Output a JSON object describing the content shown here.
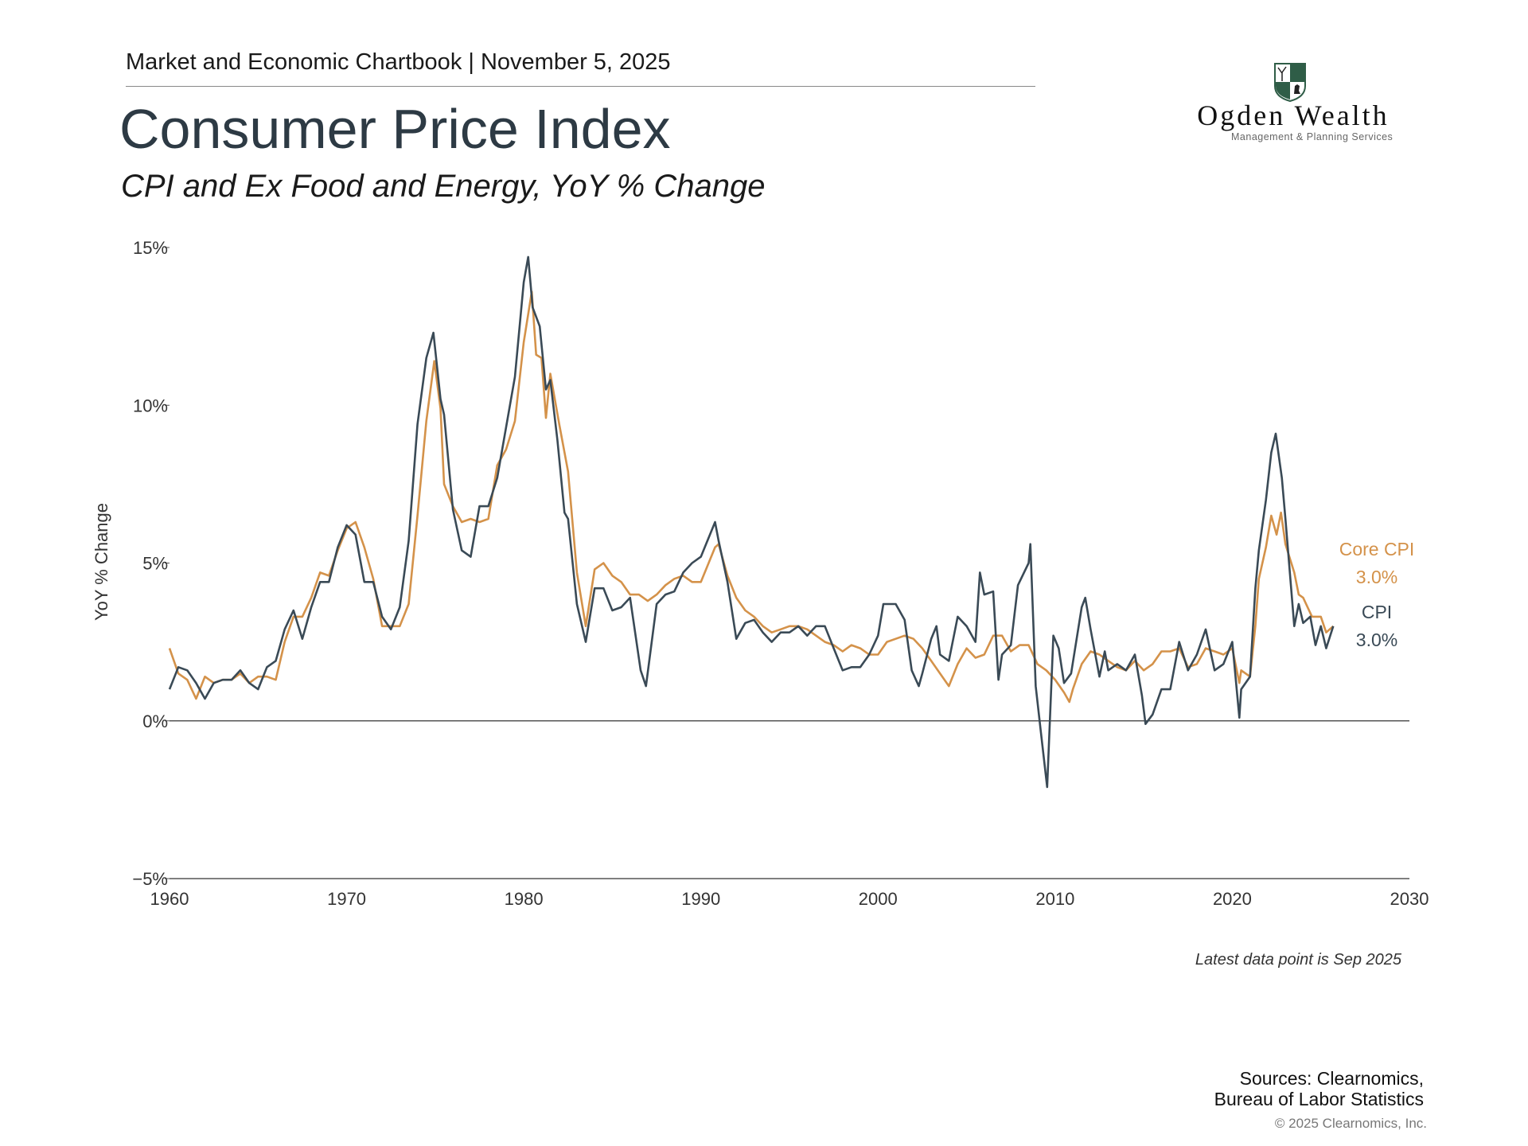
{
  "header": {
    "kicker": "Market and Economic Chartbook | November 5, 2025",
    "title": "Consumer Price Index",
    "subtitle": "CPI and Ex Food and Energy, YoY % Change"
  },
  "logo": {
    "name": "Ogden Wealth",
    "tagline": "Management & Planning Services",
    "colors": {
      "shield_green": "#2f5d47"
    }
  },
  "footer": {
    "note": "Latest data point is Sep 2025",
    "sources_line1": "Sources: Clearnomics,",
    "sources_line2": "Bureau of Labor Statistics",
    "copyright": "© 2025 Clearnomics, Inc."
  },
  "chart_data": {
    "type": "line",
    "title": "Consumer Price Index",
    "subtitle": "CPI and Ex Food and Energy, YoY % Change",
    "xlabel": "",
    "ylabel": "YoY % Change",
    "xlim": [
      1960,
      2030
    ],
    "ylim": [
      -5,
      15
    ],
    "x_ticks": [
      1960,
      1970,
      1980,
      1990,
      2000,
      2010,
      2020,
      2030
    ],
    "x_tick_labels": [
      "1960",
      "1970",
      "1980",
      "1990",
      "2000",
      "2010",
      "2020",
      "2030"
    ],
    "y_ticks": [
      -5,
      0,
      5,
      10,
      15
    ],
    "y_tick_labels": [
      "−5%",
      "0%",
      "5%",
      "10%",
      "15%"
    ],
    "grid": false,
    "legend": "direct labels at right end of lines",
    "series": [
      {
        "name": "CPI",
        "end_label": "3.0%",
        "color": "#3a4a56",
        "points": [
          [
            1960,
            1.0
          ],
          [
            1960.5,
            1.7
          ],
          [
            1961,
            1.6
          ],
          [
            1961.5,
            1.2
          ],
          [
            1962,
            0.7
          ],
          [
            1962.5,
            1.2
          ],
          [
            1963,
            1.3
          ],
          [
            1963.5,
            1.3
          ],
          [
            1964,
            1.6
          ],
          [
            1964.5,
            1.2
          ],
          [
            1965,
            1.0
          ],
          [
            1965.5,
            1.7
          ],
          [
            1966,
            1.9
          ],
          [
            1966.5,
            2.9
          ],
          [
            1967,
            3.5
          ],
          [
            1967.5,
            2.6
          ],
          [
            1968,
            3.6
          ],
          [
            1968.5,
            4.4
          ],
          [
            1969,
            4.4
          ],
          [
            1969.5,
            5.5
          ],
          [
            1970,
            6.2
          ],
          [
            1970.5,
            5.9
          ],
          [
            1971,
            4.4
          ],
          [
            1971.5,
            4.4
          ],
          [
            1972,
            3.3
          ],
          [
            1972.5,
            2.9
          ],
          [
            1973,
            3.6
          ],
          [
            1973.5,
            5.7
          ],
          [
            1974,
            9.4
          ],
          [
            1974.5,
            11.5
          ],
          [
            1974.9,
            12.3
          ],
          [
            1975.3,
            10.2
          ],
          [
            1975.5,
            9.7
          ],
          [
            1976,
            6.7
          ],
          [
            1976.5,
            5.4
          ],
          [
            1977,
            5.2
          ],
          [
            1977.5,
            6.8
          ],
          [
            1978,
            6.8
          ],
          [
            1978.5,
            7.7
          ],
          [
            1979,
            9.3
          ],
          [
            1979.5,
            10.9
          ],
          [
            1980,
            13.9
          ],
          [
            1980.25,
            14.7
          ],
          [
            1980.5,
            13.1
          ],
          [
            1980.9,
            12.5
          ],
          [
            1981.25,
            10.5
          ],
          [
            1981.5,
            10.8
          ],
          [
            1981.9,
            8.9
          ],
          [
            1982.3,
            6.6
          ],
          [
            1982.5,
            6.4
          ],
          [
            1983,
            3.7
          ],
          [
            1983.5,
            2.5
          ],
          [
            1984,
            4.2
          ],
          [
            1984.5,
            4.2
          ],
          [
            1985,
            3.5
          ],
          [
            1985.5,
            3.6
          ],
          [
            1986,
            3.9
          ],
          [
            1986.6,
            1.6
          ],
          [
            1986.9,
            1.1
          ],
          [
            1987.5,
            3.7
          ],
          [
            1988,
            4.0
          ],
          [
            1988.5,
            4.1
          ],
          [
            1989,
            4.7
          ],
          [
            1989.5,
            5.0
          ],
          [
            1990,
            5.2
          ],
          [
            1990.8,
            6.3
          ],
          [
            1991,
            5.7
          ],
          [
            1991.5,
            4.4
          ],
          [
            1992,
            2.6
          ],
          [
            1992.5,
            3.1
          ],
          [
            1993,
            3.2
          ],
          [
            1993.5,
            2.8
          ],
          [
            1994,
            2.5
          ],
          [
            1994.5,
            2.8
          ],
          [
            1995,
            2.8
          ],
          [
            1995.5,
            3.0
          ],
          [
            1996,
            2.7
          ],
          [
            1996.5,
            3.0
          ],
          [
            1997,
            3.0
          ],
          [
            1997.5,
            2.3
          ],
          [
            1998,
            1.6
          ],
          [
            1998.5,
            1.7
          ],
          [
            1999,
            1.7
          ],
          [
            1999.5,
            2.1
          ],
          [
            2000,
            2.7
          ],
          [
            2000.3,
            3.7
          ],
          [
            2000.5,
            3.7
          ],
          [
            2001,
            3.7
          ],
          [
            2001.5,
            3.2
          ],
          [
            2001.9,
            1.6
          ],
          [
            2002.3,
            1.1
          ],
          [
            2002.5,
            1.5
          ],
          [
            2003,
            2.6
          ],
          [
            2003.3,
            3.0
          ],
          [
            2003.5,
            2.1
          ],
          [
            2004,
            1.9
          ],
          [
            2004.5,
            3.3
          ],
          [
            2005,
            3.0
          ],
          [
            2005.5,
            2.5
          ],
          [
            2005.75,
            4.7
          ],
          [
            2006,
            4.0
          ],
          [
            2006.5,
            4.1
          ],
          [
            2006.8,
            1.3
          ],
          [
            2007,
            2.1
          ],
          [
            2007.5,
            2.4
          ],
          [
            2007.9,
            4.3
          ],
          [
            2008.5,
            5.0
          ],
          [
            2008.6,
            5.6
          ],
          [
            2008.9,
            1.1
          ],
          [
            2009.2,
            -0.4
          ],
          [
            2009.55,
            -2.1
          ],
          [
            2009.9,
            2.7
          ],
          [
            2010.2,
            2.3
          ],
          [
            2010.5,
            1.2
          ],
          [
            2010.9,
            1.5
          ],
          [
            2011.5,
            3.6
          ],
          [
            2011.7,
            3.9
          ],
          [
            2012,
            2.9
          ],
          [
            2012.5,
            1.4
          ],
          [
            2012.8,
            2.2
          ],
          [
            2013,
            1.6
          ],
          [
            2013.5,
            1.8
          ],
          [
            2014,
            1.6
          ],
          [
            2014.5,
            2.1
          ],
          [
            2014.9,
            0.8
          ],
          [
            2015.1,
            -0.1
          ],
          [
            2015.5,
            0.2
          ],
          [
            2016,
            1.0
          ],
          [
            2016.5,
            1.0
          ],
          [
            2017,
            2.5
          ],
          [
            2017.5,
            1.6
          ],
          [
            2018,
            2.1
          ],
          [
            2018.5,
            2.9
          ],
          [
            2019,
            1.6
          ],
          [
            2019.5,
            1.8
          ],
          [
            2020,
            2.5
          ],
          [
            2020.4,
            0.1
          ],
          [
            2020.5,
            1.0
          ],
          [
            2021,
            1.4
          ],
          [
            2021.3,
            4.2
          ],
          [
            2021.5,
            5.4
          ],
          [
            2021.9,
            7.0
          ],
          [
            2022.2,
            8.5
          ],
          [
            2022.45,
            9.1
          ],
          [
            2022.8,
            7.7
          ],
          [
            2023,
            6.4
          ],
          [
            2023.5,
            3.0
          ],
          [
            2023.75,
            3.7
          ],
          [
            2024,
            3.1
          ],
          [
            2024.4,
            3.3
          ],
          [
            2024.7,
            2.4
          ],
          [
            2025,
            3.0
          ],
          [
            2025.3,
            2.3
          ],
          [
            2025.7,
            3.0
          ]
        ]
      },
      {
        "name": "Core CPI",
        "end_label": "3.0%",
        "color": "#d4924a",
        "points": [
          [
            1960,
            2.3
          ],
          [
            1960.5,
            1.5
          ],
          [
            1961,
            1.3
          ],
          [
            1961.5,
            0.7
          ],
          [
            1962,
            1.4
          ],
          [
            1962.5,
            1.2
          ],
          [
            1963,
            1.3
          ],
          [
            1963.5,
            1.3
          ],
          [
            1964,
            1.5
          ],
          [
            1964.5,
            1.2
          ],
          [
            1965,
            1.4
          ],
          [
            1965.5,
            1.4
          ],
          [
            1966,
            1.3
          ],
          [
            1966.5,
            2.5
          ],
          [
            1967,
            3.3
          ],
          [
            1967.5,
            3.3
          ],
          [
            1968,
            3.9
          ],
          [
            1968.5,
            4.7
          ],
          [
            1969,
            4.6
          ],
          [
            1969.5,
            5.4
          ],
          [
            1970,
            6.1
          ],
          [
            1970.5,
            6.3
          ],
          [
            1971,
            5.5
          ],
          [
            1971.5,
            4.5
          ],
          [
            1972,
            3.0
          ],
          [
            1972.5,
            3.0
          ],
          [
            1973,
            3.0
          ],
          [
            1973.5,
            3.7
          ],
          [
            1974,
            6.5
          ],
          [
            1974.5,
            9.5
          ],
          [
            1974.95,
            11.4
          ],
          [
            1975.3,
            9.9
          ],
          [
            1975.5,
            7.5
          ],
          [
            1976,
            6.8
          ],
          [
            1976.5,
            6.3
          ],
          [
            1977,
            6.4
          ],
          [
            1977.5,
            6.3
          ],
          [
            1978,
            6.4
          ],
          [
            1978.5,
            8.1
          ],
          [
            1979,
            8.6
          ],
          [
            1979.5,
            9.5
          ],
          [
            1980,
            12.0
          ],
          [
            1980.45,
            13.6
          ],
          [
            1980.7,
            11.6
          ],
          [
            1981,
            11.5
          ],
          [
            1981.25,
            9.6
          ],
          [
            1981.5,
            11.0
          ],
          [
            1982,
            9.4
          ],
          [
            1982.5,
            7.9
          ],
          [
            1983,
            4.7
          ],
          [
            1983.5,
            3.0
          ],
          [
            1984,
            4.8
          ],
          [
            1984.5,
            5.0
          ],
          [
            1985,
            4.6
          ],
          [
            1985.5,
            4.4
          ],
          [
            1986,
            4.0
          ],
          [
            1986.5,
            4.0
          ],
          [
            1987,
            3.8
          ],
          [
            1987.5,
            4.0
          ],
          [
            1988,
            4.3
          ],
          [
            1988.5,
            4.5
          ],
          [
            1989,
            4.6
          ],
          [
            1989.5,
            4.4
          ],
          [
            1990,
            4.4
          ],
          [
            1990.8,
            5.5
          ],
          [
            1991,
            5.6
          ],
          [
            1991.5,
            4.6
          ],
          [
            1992,
            3.9
          ],
          [
            1992.5,
            3.5
          ],
          [
            1993,
            3.3
          ],
          [
            1993.5,
            3.0
          ],
          [
            1994,
            2.8
          ],
          [
            1994.5,
            2.9
          ],
          [
            1995,
            3.0
          ],
          [
            1995.5,
            3.0
          ],
          [
            1996,
            2.9
          ],
          [
            1996.5,
            2.7
          ],
          [
            1997,
            2.5
          ],
          [
            1997.5,
            2.4
          ],
          [
            1998,
            2.2
          ],
          [
            1998.5,
            2.4
          ],
          [
            1999,
            2.3
          ],
          [
            1999.5,
            2.1
          ],
          [
            2000,
            2.1
          ],
          [
            2000.5,
            2.5
          ],
          [
            2001,
            2.6
          ],
          [
            2001.5,
            2.7
          ],
          [
            2002,
            2.6
          ],
          [
            2002.5,
            2.3
          ],
          [
            2003,
            1.9
          ],
          [
            2003.5,
            1.5
          ],
          [
            2004,
            1.1
          ],
          [
            2004.5,
            1.8
          ],
          [
            2005,
            2.3
          ],
          [
            2005.5,
            2.0
          ],
          [
            2006,
            2.1
          ],
          [
            2006.5,
            2.7
          ],
          [
            2007,
            2.7
          ],
          [
            2007.5,
            2.2
          ],
          [
            2008,
            2.4
          ],
          [
            2008.5,
            2.4
          ],
          [
            2009,
            1.8
          ],
          [
            2009.5,
            1.6
          ],
          [
            2010,
            1.3
          ],
          [
            2010.5,
            0.9
          ],
          [
            2010.8,
            0.6
          ],
          [
            2011,
            1.0
          ],
          [
            2011.5,
            1.8
          ],
          [
            2012,
            2.2
          ],
          [
            2012.5,
            2.1
          ],
          [
            2013,
            1.9
          ],
          [
            2013.5,
            1.7
          ],
          [
            2014,
            1.6
          ],
          [
            2014.5,
            1.9
          ],
          [
            2015,
            1.6
          ],
          [
            2015.5,
            1.8
          ],
          [
            2016,
            2.2
          ],
          [
            2016.5,
            2.2
          ],
          [
            2017,
            2.3
          ],
          [
            2017.5,
            1.7
          ],
          [
            2018,
            1.8
          ],
          [
            2018.5,
            2.3
          ],
          [
            2019,
            2.2
          ],
          [
            2019.5,
            2.1
          ],
          [
            2020,
            2.3
          ],
          [
            2020.4,
            1.2
          ],
          [
            2020.5,
            1.6
          ],
          [
            2021,
            1.4
          ],
          [
            2021.3,
            3.0
          ],
          [
            2021.5,
            4.5
          ],
          [
            2021.9,
            5.5
          ],
          [
            2022.2,
            6.5
          ],
          [
            2022.5,
            5.9
          ],
          [
            2022.75,
            6.6
          ],
          [
            2023,
            5.6
          ],
          [
            2023.5,
            4.7
          ],
          [
            2023.75,
            4.0
          ],
          [
            2024,
            3.9
          ],
          [
            2024.5,
            3.3
          ],
          [
            2024.75,
            3.3
          ],
          [
            2025,
            3.3
          ],
          [
            2025.3,
            2.8
          ],
          [
            2025.7,
            3.0
          ]
        ]
      }
    ]
  }
}
